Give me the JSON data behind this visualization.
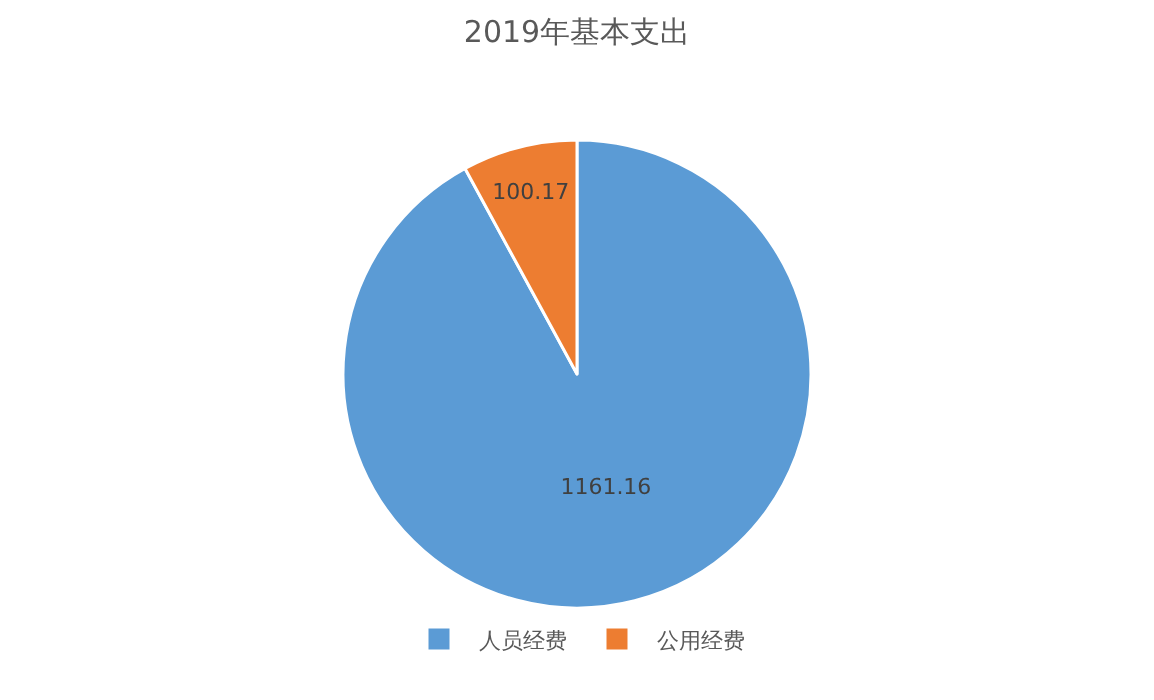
{
  "chart_data": {
    "type": "pie",
    "title": "2019年基本支出",
    "categories": [
      "人员经费",
      "公用经费"
    ],
    "values": [
      1161.16,
      100.17
    ],
    "colors": [
      "#5b9bd5",
      "#ed7d31"
    ],
    "data_labels": true,
    "legend": "bottom"
  }
}
